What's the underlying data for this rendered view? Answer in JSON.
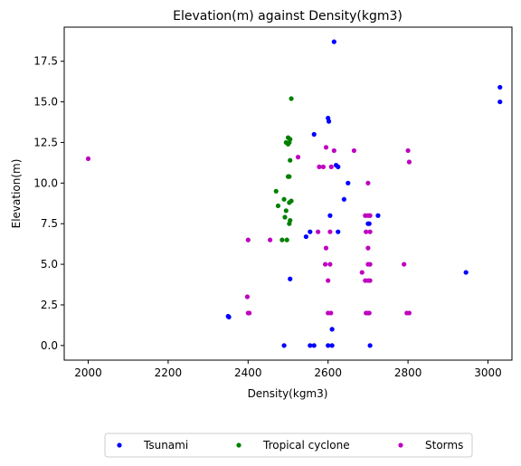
{
  "chart_data": {
    "type": "scatter",
    "title": "Elevation(m) against Density(kgm3)",
    "xlabel": "Density(kgm3)",
    "ylabel": "Elevation(m)",
    "xlim": [
      1940,
      3060
    ],
    "ylim": [
      -0.9,
      19.6
    ],
    "xticks": [
      2000,
      2200,
      2400,
      2600,
      2800,
      3000
    ],
    "yticks": [
      0.0,
      2.5,
      5.0,
      7.5,
      10.0,
      12.5,
      15.0,
      17.5
    ],
    "xtick_labels": [
      "2000",
      "2200",
      "2400",
      "2600",
      "2800",
      "3000"
    ],
    "ytick_labels": [
      "0.0",
      "2.5",
      "5.0",
      "7.5",
      "10.0",
      "12.5",
      "15.0",
      "17.5"
    ],
    "grid": false,
    "legend_position": "bottom-center",
    "series": [
      {
        "name": "Tsunami",
        "color": "#0000ff",
        "points": [
          [
            2615,
            18.7
          ],
          [
            2600,
            14.0
          ],
          [
            2602,
            13.8
          ],
          [
            2565,
            13.0
          ],
          [
            2620,
            11.1
          ],
          [
            2625,
            11.0
          ],
          [
            2650,
            10.0
          ],
          [
            2640,
            9.0
          ],
          [
            2605,
            8.0
          ],
          [
            2725,
            8.0
          ],
          [
            2700,
            7.5
          ],
          [
            2703,
            7.5
          ],
          [
            2555,
            7.0
          ],
          [
            2625,
            7.0
          ],
          [
            2545,
            6.7
          ],
          [
            2505,
            4.1
          ],
          [
            2350,
            1.8
          ],
          [
            2352,
            1.75
          ],
          [
            2610,
            1.0
          ],
          [
            2490,
            0.0
          ],
          [
            2555,
            0.0
          ],
          [
            2565,
            0.0
          ],
          [
            2600,
            0.0
          ],
          [
            2610,
            0.0
          ],
          [
            2705,
            0.0
          ],
          [
            3030,
            15.9
          ],
          [
            3030,
            15.0
          ],
          [
            2945,
            4.5
          ]
        ]
      },
      {
        "name": "Tropical cyclone",
        "color": "#008000",
        "points": [
          [
            2508,
            15.2
          ],
          [
            2500,
            12.8
          ],
          [
            2505,
            12.7
          ],
          [
            2495,
            12.5
          ],
          [
            2500,
            12.4
          ],
          [
            2503,
            12.5
          ],
          [
            2505,
            11.4
          ],
          [
            2500,
            10.4
          ],
          [
            2503,
            10.4
          ],
          [
            2508,
            8.9
          ],
          [
            2503,
            8.8
          ],
          [
            2470,
            9.5
          ],
          [
            2490,
            9.0
          ],
          [
            2475,
            8.6
          ],
          [
            2495,
            8.3
          ],
          [
            2492,
            7.9
          ],
          [
            2505,
            7.7
          ],
          [
            2503,
            7.5
          ],
          [
            2485,
            6.5
          ],
          [
            2497,
            6.5
          ]
        ]
      },
      {
        "name": "Storms",
        "color": "#bf00bf",
        "points": [
          [
            2000,
            11.5
          ],
          [
            2525,
            11.6
          ],
          [
            2595,
            12.2
          ],
          [
            2615,
            12.0
          ],
          [
            2665,
            12.0
          ],
          [
            2800,
            12.0
          ],
          [
            2803,
            11.3
          ],
          [
            2578,
            11.0
          ],
          [
            2588,
            11.0
          ],
          [
            2608,
            11.0
          ],
          [
            2700,
            10.0
          ],
          [
            2693,
            8.0
          ],
          [
            2700,
            8.0
          ],
          [
            2705,
            8.0
          ],
          [
            2595,
            6.0
          ],
          [
            2575,
            7.0
          ],
          [
            2605,
            7.0
          ],
          [
            2695,
            7.0
          ],
          [
            2705,
            7.0
          ],
          [
            2400,
            6.5
          ],
          [
            2455,
            6.5
          ],
          [
            2700,
            6.0
          ],
          [
            2593,
            5.0
          ],
          [
            2605,
            5.0
          ],
          [
            2700,
            5.0
          ],
          [
            2705,
            5.0
          ],
          [
            2790,
            5.0
          ],
          [
            2685,
            4.5
          ],
          [
            2600,
            4.0
          ],
          [
            2693,
            4.0
          ],
          [
            2700,
            4.0
          ],
          [
            2705,
            4.0
          ],
          [
            2398,
            3.0
          ],
          [
            2400,
            2.0
          ],
          [
            2403,
            2.0
          ],
          [
            2600,
            2.0
          ],
          [
            2607,
            2.0
          ],
          [
            2695,
            2.0
          ],
          [
            2700,
            2.0
          ],
          [
            2703,
            2.0
          ],
          [
            2797,
            2.0
          ],
          [
            2803,
            2.0
          ]
        ]
      }
    ]
  }
}
